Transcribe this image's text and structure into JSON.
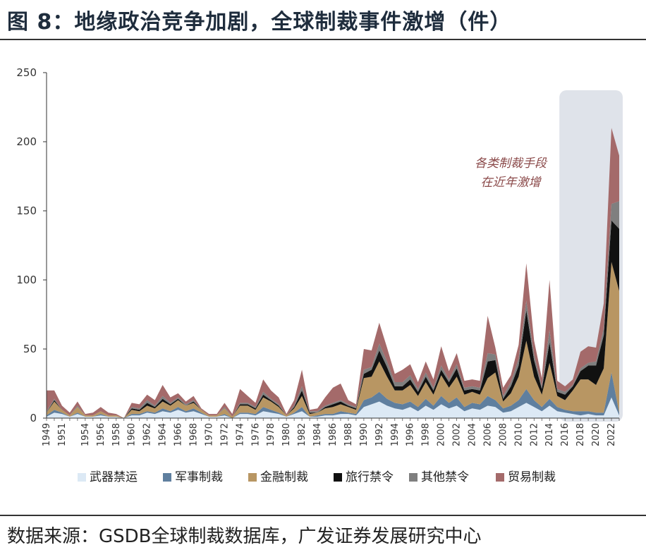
{
  "header": {
    "title": "图 8：地缘政治竞争加剧，全球制裁事件激增（件）"
  },
  "footer": {
    "source": "数据来源：GSDB全球制裁数据库，广发证券发展研究中心"
  },
  "chart_data": {
    "type": "area",
    "stacked": true,
    "title": "地缘政治竞争加剧，全球制裁事件激增（件）",
    "xlabel": "",
    "ylabel": "",
    "ylim": [
      0,
      250
    ],
    "yticks": [
      0,
      50,
      100,
      150,
      200,
      250
    ],
    "x_tick_labels": [
      "1949",
      "1951",
      "1954",
      "1956",
      "1958",
      "1960",
      "1962",
      "1964",
      "1966",
      "1968",
      "1970",
      "1972",
      "1974",
      "1976",
      "1978",
      "1980",
      "1982",
      "1984",
      "1986",
      "1988",
      "1990",
      "1992",
      "1994",
      "1996",
      "1998",
      "2000",
      "2002",
      "2004",
      "2006",
      "2008",
      "2010",
      "2012",
      "2014",
      "2016",
      "2018",
      "2020",
      "2022"
    ],
    "years": [
      1949,
      1950,
      1951,
      1952,
      1953,
      1954,
      1955,
      1956,
      1957,
      1958,
      1959,
      1960,
      1961,
      1962,
      1963,
      1964,
      1965,
      1966,
      1967,
      1968,
      1969,
      1970,
      1971,
      1972,
      1973,
      1974,
      1975,
      1976,
      1977,
      1978,
      1979,
      1980,
      1981,
      1982,
      1983,
      1984,
      1985,
      1986,
      1987,
      1988,
      1989,
      1990,
      1991,
      1992,
      1993,
      1994,
      1995,
      1996,
      1997,
      1998,
      1999,
      2000,
      2001,
      2002,
      2003,
      2004,
      2005,
      2006,
      2007,
      2008,
      2009,
      2010,
      2011,
      2012,
      2013,
      2014,
      2015,
      2016,
      2017,
      2018,
      2019,
      2020,
      2021,
      2022,
      2023
    ],
    "series": [
      {
        "name": "武器禁运",
        "color": "#dce9f5",
        "values": [
          1,
          4,
          3,
          1,
          3,
          1,
          1,
          2,
          1,
          1,
          0,
          2,
          2,
          4,
          3,
          5,
          4,
          6,
          4,
          5,
          3,
          1,
          1,
          2,
          0,
          3,
          3,
          2,
          5,
          4,
          3,
          1,
          3,
          5,
          1,
          1,
          2,
          2,
          3,
          3,
          2,
          8,
          10,
          12,
          9,
          7,
          6,
          8,
          5,
          9,
          6,
          10,
          7,
          9,
          5,
          7,
          6,
          9,
          8,
          4,
          5,
          8,
          11,
          8,
          5,
          9,
          5,
          4,
          3,
          2,
          3,
          2,
          2,
          15,
          2
        ]
      },
      {
        "name": "军事制裁",
        "color": "#5f7f9f",
        "values": [
          1,
          2,
          1,
          0,
          1,
          0,
          0,
          1,
          0,
          0,
          0,
          1,
          1,
          1,
          1,
          2,
          1,
          2,
          1,
          2,
          1,
          0,
          0,
          1,
          0,
          1,
          1,
          1,
          3,
          2,
          1,
          0,
          1,
          3,
          0,
          1,
          1,
          1,
          2,
          1,
          1,
          5,
          5,
          7,
          5,
          4,
          4,
          4,
          3,
          5,
          3,
          6,
          4,
          6,
          3,
          4,
          4,
          7,
          5,
          3,
          4,
          5,
          10,
          5,
          3,
          5,
          3,
          2,
          2,
          3,
          2,
          2,
          2,
          18,
          2
        ]
      },
      {
        "name": "金融制裁",
        "color": "#b89663",
        "values": [
          2,
          6,
          2,
          1,
          4,
          1,
          1,
          2,
          1,
          1,
          0,
          3,
          2,
          4,
          3,
          5,
          4,
          5,
          4,
          4,
          2,
          1,
          1,
          4,
          1,
          5,
          5,
          3,
          7,
          6,
          4,
          1,
          3,
          8,
          2,
          2,
          4,
          5,
          5,
          4,
          3,
          16,
          15,
          22,
          16,
          9,
          10,
          12,
          8,
          12,
          8,
          15,
          11,
          15,
          9,
          8,
          7,
          13,
          20,
          5,
          9,
          17,
          35,
          17,
          9,
          26,
          8,
          7,
          15,
          23,
          23,
          20,
          32,
          80,
          88
        ]
      },
      {
        "name": "旅行禁令",
        "color": "#111111",
        "values": [
          0,
          1,
          0,
          0,
          0,
          0,
          0,
          0,
          0,
          0,
          0,
          1,
          1,
          2,
          1,
          2,
          1,
          1,
          0,
          1,
          0,
          0,
          0,
          0,
          0,
          1,
          1,
          1,
          2,
          1,
          1,
          0,
          1,
          4,
          1,
          0,
          1,
          2,
          2,
          1,
          1,
          3,
          5,
          8,
          7,
          3,
          3,
          4,
          3,
          4,
          3,
          4,
          4,
          6,
          3,
          2,
          3,
          12,
          9,
          2,
          5,
          8,
          22,
          12,
          4,
          15,
          3,
          4,
          3,
          6,
          10,
          14,
          24,
          30,
          45
        ]
      },
      {
        "name": "其他禁令",
        "color": "#7f7f7f",
        "values": [
          1,
          1,
          0,
          0,
          1,
          0,
          0,
          0,
          0,
          0,
          0,
          1,
          1,
          2,
          1,
          2,
          1,
          1,
          1,
          1,
          0,
          0,
          0,
          1,
          0,
          1,
          1,
          1,
          2,
          1,
          1,
          0,
          1,
          3,
          1,
          1,
          1,
          1,
          1,
          1,
          1,
          3,
          2,
          5,
          4,
          3,
          3,
          3,
          2,
          3,
          2,
          3,
          2,
          3,
          2,
          2,
          2,
          6,
          4,
          2,
          3,
          5,
          7,
          4,
          2,
          9,
          2,
          2,
          1,
          2,
          2,
          3,
          5,
          12,
          20
        ]
      },
      {
        "name": "贸易制裁",
        "color": "#a46a6a",
        "values": [
          15,
          6,
          3,
          2,
          3,
          1,
          2,
          3,
          2,
          1,
          0,
          3,
          3,
          4,
          4,
          8,
          4,
          3,
          2,
          3,
          1,
          1,
          1,
          3,
          2,
          10,
          5,
          3,
          9,
          6,
          5,
          1,
          4,
          12,
          1,
          2,
          6,
          11,
          12,
          3,
          2,
          15,
          12,
          15,
          10,
          6,
          9,
          8,
          5,
          8,
          6,
          14,
          6,
          8,
          5,
          5,
          5,
          27,
          5,
          6,
          5,
          10,
          27,
          10,
          6,
          36,
          6,
          4,
          4,
          12,
          12,
          10,
          18,
          55,
          33
        ]
      }
    ],
    "legend": [
      "武器禁运",
      "军事制裁",
      "金融制裁",
      "旅行禁令",
      "其他禁令",
      "贸易制裁"
    ],
    "legend_position": "bottom",
    "highlight_range": [
      2016,
      2023
    ],
    "annotation": {
      "line1": "各类制裁手段",
      "line2": "在近年激增"
    }
  }
}
